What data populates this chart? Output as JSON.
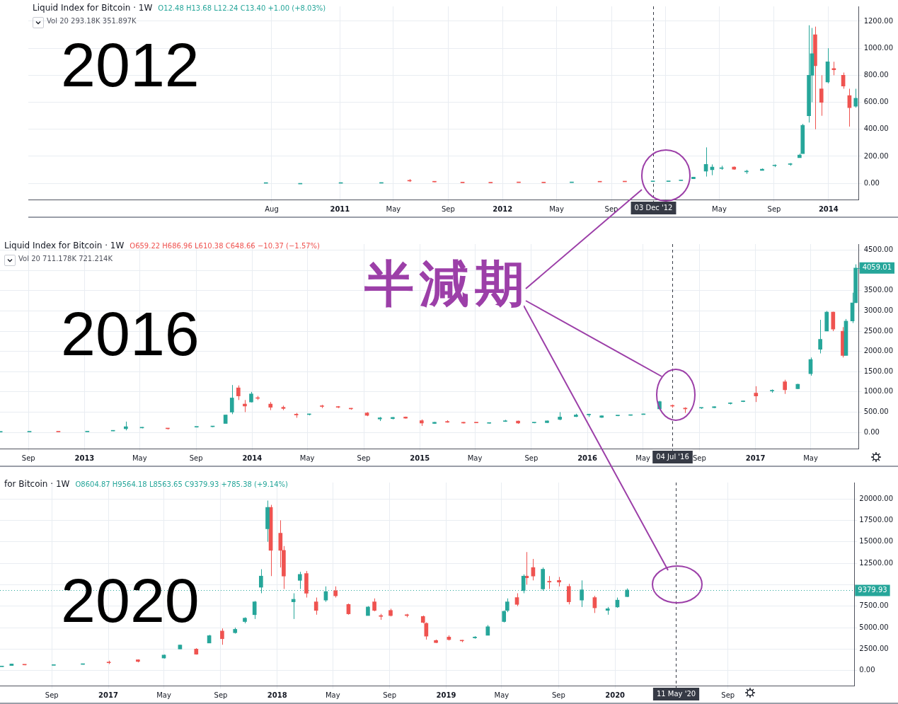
{
  "chart_data": [
    {
      "type": "candlestick",
      "title": "Liquid Index for Bitcoin · 1W",
      "subtitle": "O12.48 H13.68 L12.24 C13.40 +1.00 (+8.03%)",
      "annotations": [
        "Vol 20 293.18K 351.897K",
        "2012"
      ],
      "xlim": [
        "2009-02-01",
        "2014-03-10"
      ],
      "xticks": [
        {
          "value": "2010-08-01",
          "label": "Aug"
        },
        {
          "value": "2011-01-01",
          "label": "2011"
        },
        {
          "value": "2011-05-01",
          "label": "May"
        },
        {
          "value": "2011-09-01",
          "label": "Sep"
        },
        {
          "value": "2012-01-01",
          "label": "2012"
        },
        {
          "value": "2012-05-01",
          "label": "May"
        },
        {
          "value": "2012-09-01",
          "label": "Sep"
        },
        {
          "value": "2013-01-01",
          "label": null
        },
        {
          "value": "2013-05-01",
          "label": "May"
        },
        {
          "value": "2013-09-01",
          "label": "Sep"
        },
        {
          "value": "2014-01-01",
          "label": "2014"
        }
      ],
      "ylim": [
        -120,
        1310
      ],
      "yticks": [
        {
          "value": 0,
          "label": "0.00"
        },
        {
          "value": 200,
          "label": "200.00"
        },
        {
          "value": 400,
          "label": "400.00"
        },
        {
          "value": 600,
          "label": "600.00"
        },
        {
          "value": 800,
          "label": "800.00"
        },
        {
          "value": 1000,
          "label": "1000.00"
        },
        {
          "value": 1200,
          "label": "1200.00"
        }
      ],
      "grid": true,
      "ref_lines": [
        {
          "axis": "x",
          "value": "2012-12-03",
          "label": "03 Dec '12",
          "line_style": "dashed",
          "color": "#363a45"
        }
      ],
      "series": [
        {
          "color": "#26a69a",
          "x": [
            "2010-07-19",
            "2010-10-04",
            "2011-01-03",
            "2011-04-04",
            "2012-06-04",
            "2012-12-03",
            "2013-01-07",
            "2013-02-04",
            "2013-03-04",
            "2013-04-01",
            "2013-04-15",
            "2013-05-06",
            "2013-07-01",
            "2013-08-05",
            "2013-09-02",
            "2013-10-07",
            "2013-10-28",
            "2013-11-04",
            "2013-11-18",
            "2013-11-25",
            "2013-12-30",
            "2014-03-03"
          ],
          "ohlc": [
            [
              0.05,
              0.09,
              0.05,
              0.07
            ],
            [
              0.06,
              0.07,
              0.06,
              0.06
            ],
            [
              0.3,
              0.4,
              0.3,
              0.4
            ],
            [
              0.8,
              1,
              0.7,
              0.9
            ],
            [
              5,
              6,
              5,
              6
            ],
            [
              12.48,
              13.68,
              12.24,
              13.4
            ],
            [
              13,
              16,
              13,
              15
            ],
            [
              20,
              25,
              20,
              24
            ],
            [
              34,
              48,
              33,
              46
            ],
            [
              90,
              266,
              50,
              140
            ],
            [
              100,
              140,
              60,
              120
            ],
            [
              110,
              130,
              100,
              115
            ],
            [
              90,
              100,
              70,
              90
            ],
            [
              95,
              110,
              95,
              105
            ],
            [
              130,
              140,
              120,
              135
            ],
            [
              140,
              150,
              130,
              145
            ],
            [
              190,
              220,
              190,
              210
            ],
            [
              220,
              440,
              220,
              430
            ],
            [
              500,
              1170,
              450,
              800
            ],
            [
              800,
              1150,
              600,
              960
            ],
            [
              750,
              1000,
              740,
              900
            ],
            [
              570,
              700,
              560,
              630
            ]
          ]
        },
        {
          "color": "#ef5350",
          "x": [
            "2011-06-06",
            "2011-08-01",
            "2011-10-03",
            "2011-12-05",
            "2012-02-06",
            "2012-04-02",
            "2012-08-06",
            "2012-10-01",
            "2013-06-03",
            "2013-12-02",
            "2013-12-16",
            "2014-01-13",
            "2014-02-03",
            "2014-02-17"
          ],
          "ohlc": [
            [
              18,
              31,
              10,
              17
            ],
            [
              13,
              14,
              8,
              10
            ],
            [
              5,
              5,
              3,
              4
            ],
            [
              4,
              4,
              2,
              3
            ],
            [
              6,
              6,
              5,
              5
            ],
            [
              5,
              5,
              4,
              4
            ],
            [
              11,
              12,
              10,
              10
            ],
            [
              12,
              13,
              11,
              11
            ],
            [
              120,
              125,
              100,
              105
            ],
            [
              1100,
              1160,
              400,
              870
            ],
            [
              700,
              800,
              500,
              600
            ],
            [
              850,
              900,
              800,
              840
            ],
            [
              800,
              820,
              700,
              720
            ],
            [
              650,
              700,
              420,
              560
            ]
          ]
        }
      ]
    },
    {
      "type": "candlestick",
      "title": "Liquid Index for Bitcoin · 1W",
      "subtitle": "O659.22 H686.96 L610.38 C648.66 −10.37 (−1.57%)",
      "annotations": [
        "Vol 20 711.178K 721.214K",
        "2016",
        "半減期",
        {
          "text": "4059.01",
          "x": "2017-08-07",
          "y": 4059.01
        }
      ],
      "xlim": [
        "2012-07-01",
        "2017-08-14"
      ],
      "xticks": [
        {
          "value": "2012-09-01",
          "label": "Sep"
        },
        {
          "value": "2013-01-01",
          "label": "2013"
        },
        {
          "value": "2013-05-01",
          "label": "May"
        },
        {
          "value": "2013-09-01",
          "label": "Sep"
        },
        {
          "value": "2014-01-01",
          "label": "2014"
        },
        {
          "value": "2014-05-01",
          "label": "May"
        },
        {
          "value": "2014-09-01",
          "label": "Sep"
        },
        {
          "value": "2015-01-01",
          "label": "2015"
        },
        {
          "value": "2015-05-01",
          "label": "May"
        },
        {
          "value": "2015-09-01",
          "label": "Sep"
        },
        {
          "value": "2016-01-01",
          "label": "2016"
        },
        {
          "value": "2016-05-01",
          "label": "May"
        },
        {
          "value": "2016-09-01",
          "label": "Sep"
        },
        {
          "value": "2017-01-01",
          "label": "2017"
        },
        {
          "value": "2017-05-01",
          "label": "May"
        }
      ],
      "ylim": [
        -400,
        4650
      ],
      "yticks": [
        {
          "value": 0,
          "label": "0.00"
        },
        {
          "value": 500,
          "label": "500.00"
        },
        {
          "value": 1000,
          "label": "1000.00"
        },
        {
          "value": 1500,
          "label": "1500.00"
        },
        {
          "value": 2000,
          "label": "2000.00"
        },
        {
          "value": 2500,
          "label": "2500.00"
        },
        {
          "value": 3000,
          "label": "3000.00"
        },
        {
          "value": 3500,
          "label": "3500.00"
        },
        {
          "value": 4000,
          "label": null
        },
        {
          "value": 4500,
          "label": "4500.00"
        }
      ],
      "grid": true,
      "ref_lines": [
        {
          "axis": "x",
          "value": "2016-07-04",
          "label": "04 Jul '16",
          "line_style": "dashed",
          "color": "#363a45"
        }
      ],
      "series": [
        {
          "color": "#26a69a",
          "x": [
            "2012-07-02",
            "2012-09-03",
            "2013-01-07",
            "2013-03-04",
            "2013-04-01",
            "2013-05-06",
            "2013-09-02",
            "2013-10-07",
            "2013-11-04",
            "2013-11-18",
            "2013-12-30",
            "2014-05-05",
            "2014-10-06",
            "2014-11-03",
            "2015-02-02",
            "2015-06-01",
            "2015-07-06",
            "2015-09-07",
            "2015-10-05",
            "2015-11-02",
            "2015-12-07",
            "2016-01-04",
            "2016-02-01",
            "2016-03-07",
            "2016-04-04",
            "2016-05-02",
            "2016-06-06",
            "2016-09-05",
            "2016-10-03",
            "2016-11-07",
            "2016-12-05",
            "2017-02-06",
            "2017-04-03",
            "2017-05-01",
            "2017-05-22",
            "2017-06-05",
            "2017-07-17",
            "2017-07-31",
            "2017-08-07"
          ],
          "ohlc": [
            [
              7,
              9,
              6,
              8
            ],
            [
              10,
              12,
              10,
              11
            ],
            [
              13,
              16,
              13,
              15
            ],
            [
              34,
              48,
              33,
              46
            ],
            [
              90,
              266,
              50,
              140
            ],
            [
              110,
              130,
              100,
              115
            ],
            [
              130,
              140,
              120,
              135
            ],
            [
              140,
              150,
              130,
              145
            ],
            [
              220,
              440,
              220,
              430
            ],
            [
              500,
              1170,
              450,
              850
            ],
            [
              750,
              1000,
              740,
              950
            ],
            [
              440,
              460,
              420,
              450
            ],
            [
              330,
              380,
              280,
              360
            ],
            [
              340,
              380,
              320,
              370
            ],
            [
              220,
              260,
              210,
              250
            ],
            [
              225,
              240,
              220,
              230
            ],
            [
              270,
              310,
              260,
              280
            ],
            [
              235,
              245,
              225,
              240
            ],
            [
              240,
              290,
              235,
              285
            ],
            [
              320,
              500,
              300,
              380
            ],
            [
              390,
              460,
              380,
              430
            ],
            [
              430,
              460,
              380,
              450
            ],
            [
              370,
              420,
              360,
              410
            ],
            [
              410,
              420,
              400,
              415
            ],
            [
              420,
              430,
              415,
              425
            ],
            [
              440,
              460,
              440,
              450
            ],
            [
              580,
              780,
              570,
              760
            ],
            [
              600,
              610,
              580,
              605
            ],
            [
              610,
              640,
              600,
              635
            ],
            [
              710,
              740,
              690,
              730
            ],
            [
              760,
              780,
              750,
              770
            ],
            [
              1020,
              1060,
              980,
              1040
            ],
            [
              1080,
              1200,
              1070,
              1190
            ],
            [
              1450,
              1850,
              1400,
              1800
            ],
            [
              2050,
              2780,
              1950,
              2300
            ],
            [
              2500,
              3000,
              2500,
              2970
            ],
            [
              1900,
              2800,
              1900,
              2750
            ],
            [
              2750,
              3450,
              2700,
              3200
            ],
            [
              3200,
              4150,
              3200,
              4059.01
            ]
          ]
        },
        {
          "color": "#ef5350",
          "x": [
            "2012-11-05",
            "2013-07-01",
            "2013-12-02",
            "2013-12-16",
            "2014-01-13",
            "2014-02-10",
            "2014-03-10",
            "2014-04-07",
            "2014-06-02",
            "2014-07-07",
            "2014-08-04",
            "2014-09-08",
            "2014-12-01",
            "2015-01-05",
            "2015-03-02",
            "2015-04-06",
            "2015-05-04",
            "2015-08-03",
            "2016-07-04",
            "2016-08-01",
            "2017-01-02",
            "2017-03-06",
            "2017-06-19",
            "2017-07-10"
          ],
          "ohlc": [
            [
              12,
              12,
              10,
              11
            ],
            [
              100,
              105,
              70,
              90
            ],
            [
              1100,
              1160,
              800,
              900
            ],
            [
              700,
              800,
              500,
              650
            ],
            [
              850,
              900,
              800,
              840
            ],
            [
              700,
              750,
              550,
              620
            ],
            [
              620,
              660,
              550,
              590
            ],
            [
              450,
              480,
              360,
              430
            ],
            [
              650,
              680,
              600,
              640
            ],
            [
              630,
              650,
              600,
              620
            ],
            [
              590,
              600,
              560,
              580
            ],
            [
              480,
              500,
              400,
              420
            ],
            [
              380,
              390,
              340,
              350
            ],
            [
              290,
              320,
              160,
              230
            ],
            [
              270,
              300,
              240,
              250
            ],
            [
              250,
              260,
              220,
              230
            ],
            [
              240,
              245,
              230,
              235
            ],
            [
              280,
              290,
              210,
              230
            ],
            [
              659.22,
              686.96,
              610.38,
              648.66
            ],
            [
              600,
              620,
              480,
              580
            ],
            [
              970,
              1140,
              750,
              900
            ],
            [
              1250,
              1300,
              950,
              1050
            ],
            [
              2970,
              2980,
              2500,
              2550
            ],
            [
              2500,
              2600,
              1850,
              1900
            ]
          ]
        }
      ]
    },
    {
      "type": "candlestick",
      "title": "for Bitcoin · 1W",
      "subtitle": "O8604.87 H9564.18 L8563.65 C9379.93 +785.38 (+9.14%)",
      "annotations": [
        "2020"
      ],
      "xlim": [
        "2016-05-12",
        "2021-06-01"
      ],
      "xticks": [
        {
          "value": "2016-09-01",
          "label": "Sep"
        },
        {
          "value": "2017-01-01",
          "label": "2017"
        },
        {
          "value": "2017-05-01",
          "label": "May"
        },
        {
          "value": "2017-09-01",
          "label": "Sep"
        },
        {
          "value": "2018-01-01",
          "label": "2018"
        },
        {
          "value": "2018-05-01",
          "label": "May"
        },
        {
          "value": "2018-09-01",
          "label": "Sep"
        },
        {
          "value": "2019-01-01",
          "label": "2019"
        },
        {
          "value": "2019-05-01",
          "label": "May"
        },
        {
          "value": "2019-09-01",
          "label": "Sep"
        },
        {
          "value": "2020-01-01",
          "label": "2020"
        },
        {
          "value": "2020-09-01",
          "label": "Sep"
        }
      ],
      "ylim": [
        -1760,
        21900
      ],
      "yticks": [
        {
          "value": 0,
          "label": "0.00"
        },
        {
          "value": 2500,
          "label": "2500.00"
        },
        {
          "value": 5000,
          "label": "5000.00"
        },
        {
          "value": 7500,
          "label": "7500.00"
        },
        {
          "value": 10000,
          "label": null
        },
        {
          "value": 12500,
          "label": "12500.00"
        },
        {
          "value": 15000,
          "label": "15000.00"
        },
        {
          "value": 17500,
          "label": "17500.00"
        },
        {
          "value": 20000,
          "label": "20000.00"
        }
      ],
      "grid": true,
      "ref_lines": [
        {
          "axis": "x",
          "value": "2020-05-11",
          "label": "11 May '20",
          "line_style": "dashed",
          "color": "#363a45"
        },
        {
          "axis": "y",
          "value": 9379.93,
          "label": "9379.93",
          "line_style": "dotted",
          "color": "#26a69a"
        }
      ],
      "series": [
        {
          "color": "#26a69a",
          "x": [
            "2016-05-16",
            "2016-06-06",
            "2016-09-05",
            "2016-11-07",
            "2017-05-01",
            "2017-06-05",
            "2017-08-07",
            "2017-10-02",
            "2017-10-23",
            "2017-11-13",
            "2017-11-27",
            "2017-12-11",
            "2018-02-05",
            "2018-02-19",
            "2018-04-16",
            "2018-07-16",
            "2019-03-04",
            "2019-04-01",
            "2019-05-06",
            "2019-05-13",
            "2019-06-17",
            "2019-07-29",
            "2019-10-21",
            "2019-12-16",
            "2020-01-06",
            "2020-01-27"
          ],
          "ohlc": [
            [
              440,
              460,
              440,
              450
            ],
            [
              580,
              780,
              570,
              760
            ],
            [
              600,
              610,
              580,
              605
            ],
            [
              710,
              740,
              690,
              730
            ],
            [
              1450,
              1850,
              1400,
              1800
            ],
            [
              2500,
              3000,
              2500,
              2970
            ],
            [
              3200,
              4150,
              3200,
              4059
            ],
            [
              4400,
              5000,
              4300,
              4800
            ],
            [
              5700,
              6200,
              5500,
              6100
            ],
            [
              6500,
              8100,
              6000,
              8000
            ],
            [
              9700,
              11800,
              9000,
              11000
            ],
            [
              16500,
              19800,
              15000,
              19000
            ],
            [
              8000,
              9000,
              6000,
              8300
            ],
            [
              10500,
              11500,
              9500,
              11200
            ],
            [
              8200,
              9800,
              8000,
              9200
            ],
            [
              6400,
              7500,
              6400,
              7400
            ],
            [
              3800,
              4000,
              3700,
              3900
            ],
            [
              4100,
              5300,
              4100,
              5100
            ],
            [
              5700,
              7000,
              5600,
              6900
            ],
            [
              7000,
              8400,
              6800,
              8000
            ],
            [
              9300,
              11200,
              9000,
              11000
            ],
            [
              9500,
              12000,
              9300,
              11800
            ],
            [
              8200,
              10500,
              7400,
              9400
            ],
            [
              7000,
              7400,
              6500,
              7200
            ],
            [
              7400,
              8500,
              7300,
              8200
            ],
            [
              8604.87,
              9564.18,
              8563.65,
              9379.93
            ]
          ]
        },
        {
          "color": "#ef5350",
          "x": [
            "2016-07-04",
            "2017-01-02",
            "2017-03-06",
            "2017-07-10",
            "2017-09-04",
            "2017-12-18",
            "2018-01-08",
            "2018-01-15",
            "2018-03-05",
            "2018-03-26",
            "2018-05-07",
            "2018-06-04",
            "2018-07-30",
            "2018-08-13",
            "2018-09-03",
            "2018-10-08",
            "2018-11-12",
            "2018-11-19",
            "2018-12-10",
            "2019-01-07",
            "2019-02-04",
            "2019-06-03",
            "2019-06-24",
            "2019-07-08",
            "2019-08-12",
            "2019-09-02",
            "2019-09-23",
            "2019-11-18"
          ],
          "ohlc": [
            [
              659,
              687,
              610,
              649
            ],
            [
              970,
              1140,
              750,
              900
            ],
            [
              1250,
              1300,
              950,
              1050
            ],
            [
              2500,
              2600,
              1850,
              1900
            ],
            [
              4600,
              4900,
              3000,
              3700
            ],
            [
              19000,
              19300,
              11000,
              14000
            ],
            [
              16000,
              17500,
              12000,
              14000
            ],
            [
              14000,
              14500,
              9500,
              11000
            ],
            [
              11300,
              11600,
              8500,
              9000
            ],
            [
              8000,
              8500,
              6500,
              7000
            ],
            [
              9300,
              9800,
              8500,
              8700
            ],
            [
              7700,
              7800,
              6500,
              6600
            ],
            [
              8000,
              8400,
              6900,
              7000
            ],
            [
              6400,
              6600,
              5900,
              6300
            ],
            [
              7000,
              7200,
              6300,
              6400
            ],
            [
              6500,
              6600,
              6200,
              6400
            ],
            [
              6300,
              6400,
              5500,
              5600
            ],
            [
              5500,
              5600,
              3600,
              4000
            ],
            [
              3500,
              3600,
              3200,
              3250
            ],
            [
              3900,
              4100,
              3500,
              3600
            ],
            [
              3500,
              3550,
              3300,
              3450
            ],
            [
              8500,
              9000,
              7500,
              7700
            ],
            [
              11000,
              13800,
              10000,
              10800
            ],
            [
              12000,
              13000,
              10500,
              11000
            ],
            [
              10400,
              11000,
              9500,
              10300
            ],
            [
              10500,
              10900,
              9800,
              10300
            ],
            [
              9800,
              10100,
              7700,
              8000
            ],
            [
              8500,
              8700,
              6700,
              7300
            ]
          ]
        }
      ]
    }
  ]
}
